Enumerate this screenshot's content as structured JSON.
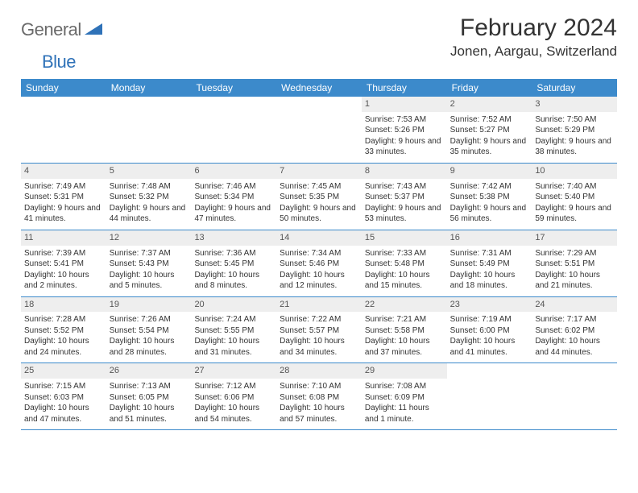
{
  "logo": {
    "part1": "General",
    "part2": "Blue"
  },
  "title": "February 2024",
  "location": "Jonen, Aargau, Switzerland",
  "colors": {
    "header_bg": "#3c8acb",
    "daynum_bg": "#eeeeee",
    "border": "#3c8acb",
    "logo_gray": "#6a6a6a",
    "logo_blue": "#2f72b8",
    "text": "#333333",
    "background": "#ffffff"
  },
  "dayHeaders": [
    "Sunday",
    "Monday",
    "Tuesday",
    "Wednesday",
    "Thursday",
    "Friday",
    "Saturday"
  ],
  "weeks": [
    [
      null,
      null,
      null,
      null,
      {
        "n": "1",
        "sr": "Sunrise: 7:53 AM",
        "ss": "Sunset: 5:26 PM",
        "dl": "Daylight: 9 hours and 33 minutes."
      },
      {
        "n": "2",
        "sr": "Sunrise: 7:52 AM",
        "ss": "Sunset: 5:27 PM",
        "dl": "Daylight: 9 hours and 35 minutes."
      },
      {
        "n": "3",
        "sr": "Sunrise: 7:50 AM",
        "ss": "Sunset: 5:29 PM",
        "dl": "Daylight: 9 hours and 38 minutes."
      }
    ],
    [
      {
        "n": "4",
        "sr": "Sunrise: 7:49 AM",
        "ss": "Sunset: 5:31 PM",
        "dl": "Daylight: 9 hours and 41 minutes."
      },
      {
        "n": "5",
        "sr": "Sunrise: 7:48 AM",
        "ss": "Sunset: 5:32 PM",
        "dl": "Daylight: 9 hours and 44 minutes."
      },
      {
        "n": "6",
        "sr": "Sunrise: 7:46 AM",
        "ss": "Sunset: 5:34 PM",
        "dl": "Daylight: 9 hours and 47 minutes."
      },
      {
        "n": "7",
        "sr": "Sunrise: 7:45 AM",
        "ss": "Sunset: 5:35 PM",
        "dl": "Daylight: 9 hours and 50 minutes."
      },
      {
        "n": "8",
        "sr": "Sunrise: 7:43 AM",
        "ss": "Sunset: 5:37 PM",
        "dl": "Daylight: 9 hours and 53 minutes."
      },
      {
        "n": "9",
        "sr": "Sunrise: 7:42 AM",
        "ss": "Sunset: 5:38 PM",
        "dl": "Daylight: 9 hours and 56 minutes."
      },
      {
        "n": "10",
        "sr": "Sunrise: 7:40 AM",
        "ss": "Sunset: 5:40 PM",
        "dl": "Daylight: 9 hours and 59 minutes."
      }
    ],
    [
      {
        "n": "11",
        "sr": "Sunrise: 7:39 AM",
        "ss": "Sunset: 5:41 PM",
        "dl": "Daylight: 10 hours and 2 minutes."
      },
      {
        "n": "12",
        "sr": "Sunrise: 7:37 AM",
        "ss": "Sunset: 5:43 PM",
        "dl": "Daylight: 10 hours and 5 minutes."
      },
      {
        "n": "13",
        "sr": "Sunrise: 7:36 AM",
        "ss": "Sunset: 5:45 PM",
        "dl": "Daylight: 10 hours and 8 minutes."
      },
      {
        "n": "14",
        "sr": "Sunrise: 7:34 AM",
        "ss": "Sunset: 5:46 PM",
        "dl": "Daylight: 10 hours and 12 minutes."
      },
      {
        "n": "15",
        "sr": "Sunrise: 7:33 AM",
        "ss": "Sunset: 5:48 PM",
        "dl": "Daylight: 10 hours and 15 minutes."
      },
      {
        "n": "16",
        "sr": "Sunrise: 7:31 AM",
        "ss": "Sunset: 5:49 PM",
        "dl": "Daylight: 10 hours and 18 minutes."
      },
      {
        "n": "17",
        "sr": "Sunrise: 7:29 AM",
        "ss": "Sunset: 5:51 PM",
        "dl": "Daylight: 10 hours and 21 minutes."
      }
    ],
    [
      {
        "n": "18",
        "sr": "Sunrise: 7:28 AM",
        "ss": "Sunset: 5:52 PM",
        "dl": "Daylight: 10 hours and 24 minutes."
      },
      {
        "n": "19",
        "sr": "Sunrise: 7:26 AM",
        "ss": "Sunset: 5:54 PM",
        "dl": "Daylight: 10 hours and 28 minutes."
      },
      {
        "n": "20",
        "sr": "Sunrise: 7:24 AM",
        "ss": "Sunset: 5:55 PM",
        "dl": "Daylight: 10 hours and 31 minutes."
      },
      {
        "n": "21",
        "sr": "Sunrise: 7:22 AM",
        "ss": "Sunset: 5:57 PM",
        "dl": "Daylight: 10 hours and 34 minutes."
      },
      {
        "n": "22",
        "sr": "Sunrise: 7:21 AM",
        "ss": "Sunset: 5:58 PM",
        "dl": "Daylight: 10 hours and 37 minutes."
      },
      {
        "n": "23",
        "sr": "Sunrise: 7:19 AM",
        "ss": "Sunset: 6:00 PM",
        "dl": "Daylight: 10 hours and 41 minutes."
      },
      {
        "n": "24",
        "sr": "Sunrise: 7:17 AM",
        "ss": "Sunset: 6:02 PM",
        "dl": "Daylight: 10 hours and 44 minutes."
      }
    ],
    [
      {
        "n": "25",
        "sr": "Sunrise: 7:15 AM",
        "ss": "Sunset: 6:03 PM",
        "dl": "Daylight: 10 hours and 47 minutes."
      },
      {
        "n": "26",
        "sr": "Sunrise: 7:13 AM",
        "ss": "Sunset: 6:05 PM",
        "dl": "Daylight: 10 hours and 51 minutes."
      },
      {
        "n": "27",
        "sr": "Sunrise: 7:12 AM",
        "ss": "Sunset: 6:06 PM",
        "dl": "Daylight: 10 hours and 54 minutes."
      },
      {
        "n": "28",
        "sr": "Sunrise: 7:10 AM",
        "ss": "Sunset: 6:08 PM",
        "dl": "Daylight: 10 hours and 57 minutes."
      },
      {
        "n": "29",
        "sr": "Sunrise: 7:08 AM",
        "ss": "Sunset: 6:09 PM",
        "dl": "Daylight: 11 hours and 1 minute."
      },
      null,
      null
    ]
  ]
}
